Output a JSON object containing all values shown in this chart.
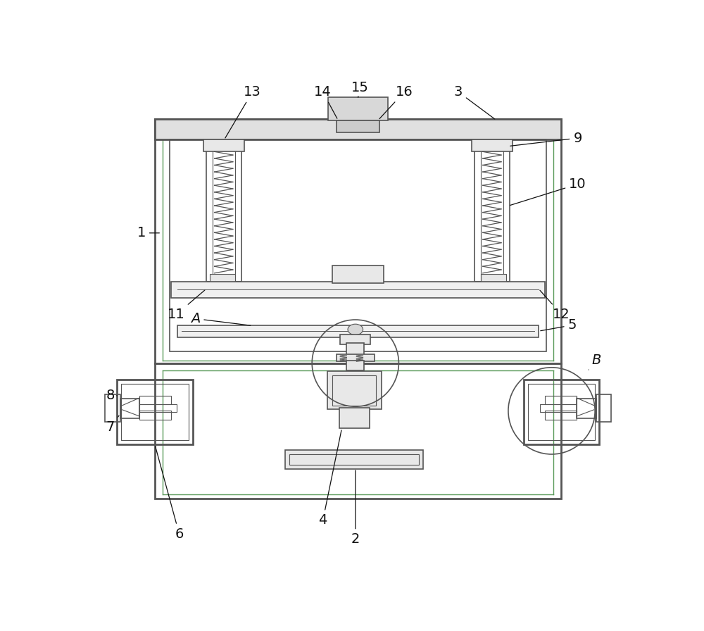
{
  "bg_color": "#ffffff",
  "lc": "#555555",
  "lc_green": "#5a9a5a",
  "fig_width": 10.0,
  "fig_height": 8.96,
  "lw_outer": 2.0,
  "lw_inner": 1.2,
  "lw_thin": 0.8,
  "fs_label": 13
}
